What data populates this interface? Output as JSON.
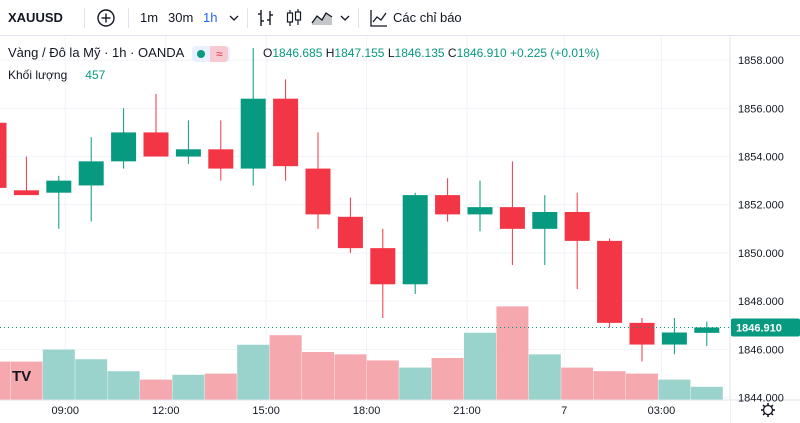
{
  "toolbar": {
    "symbol": "XAUUSD",
    "intervals": [
      "1m",
      "30m",
      "1h"
    ],
    "active_interval": "1h",
    "indicators_label": "Các chỉ báo"
  },
  "legend": {
    "title": "Vàng / Đô la Mỹ · 1h · OANDA",
    "open_label": "O",
    "open": "1846.685",
    "high_label": "H",
    "high": "1847.155",
    "low_label": "L",
    "low": "1846.135",
    "close_label": "C",
    "close": "1846.910",
    "change": "+0.225 (+0.01%)",
    "volume_label": "Khối lượng",
    "volume": "457"
  },
  "logo_text": "TV",
  "colors": {
    "up": "#089981",
    "down": "#f23645",
    "up_vol": "#9ad3cc",
    "down_vol": "#f5a8ae"
  },
  "chart_data": {
    "type": "candlestick",
    "y_ticks": [
      "1858.000",
      "1856.000",
      "1854.000",
      "1852.000",
      "1850.000",
      "1848.000",
      "1846.000",
      "1844.000"
    ],
    "ylim": [
      1843.9,
      1859.0
    ],
    "x_ticks": [
      {
        "index": 2.2,
        "label": "09:00"
      },
      {
        "index": 5.3,
        "label": "12:00"
      },
      {
        "index": 8.4,
        "label": "15:00"
      },
      {
        "index": 11.5,
        "label": "18:00"
      },
      {
        "index": 14.6,
        "label": "21:00"
      },
      {
        "index": 17.6,
        "label": "7"
      },
      {
        "index": 20.6,
        "label": "03:00"
      }
    ],
    "last_price": 1846.91,
    "last_price_label": "1846.910",
    "candles": [
      {
        "o": 1855.4,
        "h": 1857.0,
        "l": 1852.6,
        "c": 1852.7,
        "v": 1.6
      },
      {
        "o": 1852.6,
        "h": 1854.0,
        "l": 1852.4,
        "c": 1852.4,
        "v": 1.6
      },
      {
        "o": 1852.5,
        "h": 1853.2,
        "l": 1851.0,
        "c": 1853.0,
        "v": 2.1
      },
      {
        "o": 1852.8,
        "h": 1854.8,
        "l": 1851.3,
        "c": 1853.8,
        "v": 1.7
      },
      {
        "o": 1853.8,
        "h": 1856.0,
        "l": 1853.5,
        "c": 1855.0,
        "v": 1.2
      },
      {
        "o": 1855.0,
        "h": 1856.6,
        "l": 1854.0,
        "c": 1854.0,
        "v": 0.85
      },
      {
        "o": 1854.0,
        "h": 1855.5,
        "l": 1853.7,
        "c": 1854.3,
        "v": 1.05
      },
      {
        "o": 1854.3,
        "h": 1855.5,
        "l": 1853.0,
        "c": 1853.5,
        "v": 1.1
      },
      {
        "o": 1853.5,
        "h": 1858.5,
        "l": 1852.8,
        "c": 1856.4,
        "v": 2.3
      },
      {
        "o": 1856.4,
        "h": 1857.2,
        "l": 1853.0,
        "c": 1853.6,
        "v": 2.7
      },
      {
        "o": 1853.5,
        "h": 1855.0,
        "l": 1851.0,
        "c": 1851.6,
        "v": 2.0
      },
      {
        "o": 1851.5,
        "h": 1852.3,
        "l": 1850.0,
        "c": 1850.2,
        "v": 1.9
      },
      {
        "o": 1850.2,
        "h": 1851.0,
        "l": 1847.3,
        "c": 1848.7,
        "v": 1.65
      },
      {
        "o": 1848.7,
        "h": 1852.5,
        "l": 1848.3,
        "c": 1852.4,
        "v": 1.35
      },
      {
        "o": 1852.4,
        "h": 1853.1,
        "l": 1851.3,
        "c": 1851.6,
        "v": 1.75
      },
      {
        "o": 1851.6,
        "h": 1853.0,
        "l": 1850.9,
        "c": 1851.9,
        "v": 2.8
      },
      {
        "o": 1851.9,
        "h": 1853.8,
        "l": 1849.5,
        "c": 1851.0,
        "v": 3.9
      },
      {
        "o": 1851.0,
        "h": 1852.4,
        "l": 1849.5,
        "c": 1851.7,
        "v": 1.9
      },
      {
        "o": 1851.7,
        "h": 1852.5,
        "l": 1848.5,
        "c": 1850.5,
        "v": 1.35
      },
      {
        "o": 1850.5,
        "h": 1850.6,
        "l": 1846.9,
        "c": 1847.1,
        "v": 1.2
      },
      {
        "o": 1847.1,
        "h": 1847.3,
        "l": 1845.5,
        "c": 1846.2,
        "v": 1.1
      },
      {
        "o": 1846.2,
        "h": 1847.3,
        "l": 1845.8,
        "c": 1846.7,
        "v": 0.85
      },
      {
        "o": 1846.685,
        "h": 1847.155,
        "l": 1846.135,
        "c": 1846.91,
        "v": 0.55
      }
    ]
  }
}
